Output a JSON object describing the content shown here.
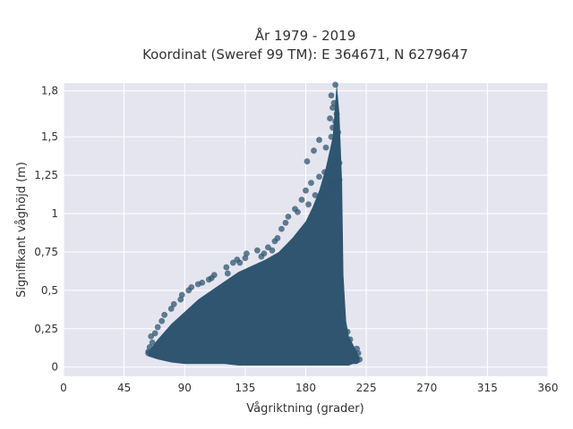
{
  "chart_data": {
    "type": "scatter",
    "title": "År 1979 - 2019",
    "subtitle": "Koordinat (Sweref 99 TM): E 364671, N 6279647",
    "xlabel": "Vågriktning (grader)",
    "ylabel": "Signifikant våghöjd (m)",
    "xlim": [
      0,
      360
    ],
    "ylim": [
      -0.06,
      1.85
    ],
    "xticks": [
      0,
      45,
      90,
      135,
      180,
      225,
      270,
      315,
      360
    ],
    "xtick_labels": [
      "0",
      "45",
      "90",
      "135",
      "180",
      "225",
      "270",
      "315",
      "360"
    ],
    "yticks": [
      0,
      0.25,
      0.5,
      0.75,
      1,
      1.25,
      1.5,
      1.8
    ],
    "ytick_labels": [
      "0",
      "0,25",
      "0,5",
      "0,75",
      "1",
      "1,25",
      "1,5",
      "1,8"
    ],
    "grid": true,
    "colors": {
      "marker": "#2f5570",
      "plot_bg": "#e5e5f0",
      "grid": "#ffffff"
    },
    "envelope": {
      "description_x": [
        63,
        70,
        80,
        90,
        100,
        110,
        120,
        130,
        140,
        150,
        160,
        170,
        180,
        185,
        190,
        195,
        200,
        203,
        205,
        207,
        208,
        210,
        212,
        215,
        218,
        220
      ],
      "upper_y": [
        0.1,
        0.18,
        0.28,
        0.36,
        0.44,
        0.5,
        0.56,
        0.62,
        0.66,
        0.7,
        0.75,
        0.84,
        0.95,
        1.04,
        1.15,
        1.3,
        1.5,
        1.85,
        1.65,
        1.2,
        0.6,
        0.3,
        0.2,
        0.15,
        0.1,
        0.06
      ],
      "lower_y": [
        0.07,
        0.05,
        0.03,
        0.02,
        0.02,
        0.02,
        0.02,
        0.01,
        0.01,
        0.01,
        0.01,
        0.01,
        0.01,
        0.01,
        0.01,
        0.01,
        0.01,
        0.01,
        0.01,
        0.01,
        0.01,
        0.01,
        0.01,
        0.02,
        0.02,
        0.03
      ]
    },
    "series": [
      {
        "points": [
          [
            202,
            1.84
          ],
          [
            199,
            1.77
          ],
          [
            201,
            1.72
          ],
          [
            200,
            1.69
          ],
          [
            203,
            1.65
          ],
          [
            198,
            1.62
          ],
          [
            202,
            1.6
          ],
          [
            200,
            1.56
          ],
          [
            204,
            1.53
          ],
          [
            199,
            1.5
          ],
          [
            190,
            1.48
          ],
          [
            195,
            1.43
          ],
          [
            186,
            1.41
          ],
          [
            181,
            1.34
          ],
          [
            205,
            1.33
          ],
          [
            194,
            1.27
          ],
          [
            190,
            1.24
          ],
          [
            205,
            1.22
          ],
          [
            200,
            1.2
          ],
          [
            184,
            1.2
          ],
          [
            180,
            1.15
          ],
          [
            193,
            1.14
          ],
          [
            187,
            1.12
          ],
          [
            177,
            1.09
          ],
          [
            182,
            1.06
          ],
          [
            172,
            1.03
          ],
          [
            174,
            1.01
          ],
          [
            167,
            0.98
          ],
          [
            165,
            0.94
          ],
          [
            162,
            0.9
          ],
          [
            159,
            0.84
          ],
          [
            157,
            0.82
          ],
          [
            152,
            0.78
          ],
          [
            155,
            0.76
          ],
          [
            144,
            0.76
          ],
          [
            149,
            0.74
          ],
          [
            147,
            0.72
          ],
          [
            136,
            0.74
          ],
          [
            135,
            0.71
          ],
          [
            129,
            0.7
          ],
          [
            131,
            0.68
          ],
          [
            126,
            0.68
          ],
          [
            121,
            0.65
          ],
          [
            122,
            0.61
          ],
          [
            112,
            0.6
          ],
          [
            110,
            0.58
          ],
          [
            108,
            0.57
          ],
          [
            103,
            0.55
          ],
          [
            100,
            0.54
          ],
          [
            95,
            0.52
          ],
          [
            93,
            0.5
          ],
          [
            88,
            0.47
          ],
          [
            87,
            0.44
          ],
          [
            82,
            0.41
          ],
          [
            80,
            0.38
          ],
          [
            75,
            0.34
          ],
          [
            73,
            0.3
          ],
          [
            70,
            0.26
          ],
          [
            68,
            0.22
          ],
          [
            65,
            0.2
          ],
          [
            66,
            0.16
          ],
          [
            64,
            0.13
          ],
          [
            63,
            0.1
          ],
          [
            63,
            0.09
          ],
          [
            218,
            0.12
          ],
          [
            219,
            0.09
          ],
          [
            220,
            0.05
          ],
          [
            217,
            0.07
          ],
          [
            213,
            0.18
          ],
          [
            211,
            0.23
          ]
        ]
      }
    ]
  }
}
